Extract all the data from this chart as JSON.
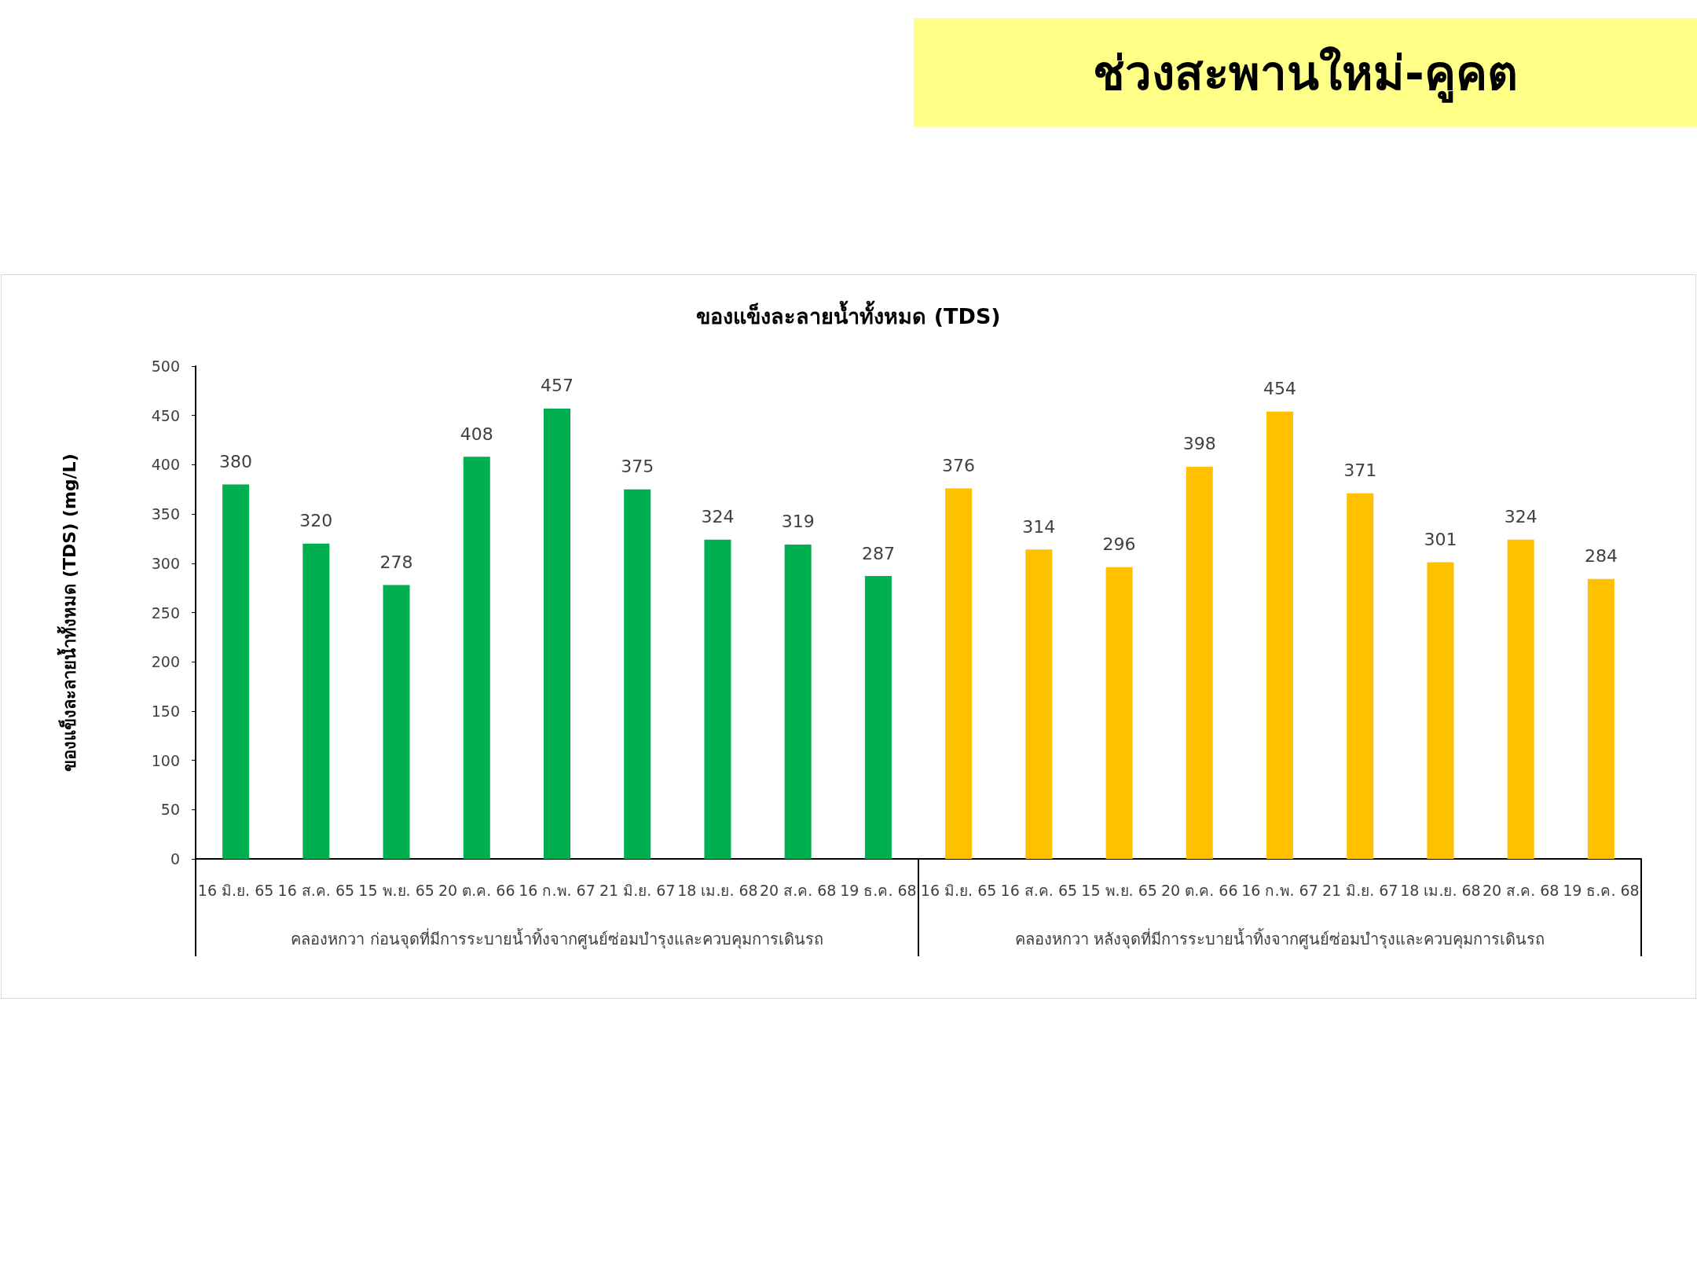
{
  "chart_data": {
    "type": "bar",
    "title": "ช่วงสะพานใหม่-คูคต",
    "subtitle": "ของแข็งละลายน้ำทั้งหมด (TDS)",
    "ylabel": "ของแข็งละลายน้ำทั้งหมด (TDS) (mg/L)",
    "categories": [
      "16 มิ.ย. 65",
      "16 ส.ค. 65",
      "15 พ.ย. 65",
      "20 ต.ค. 66",
      "16 ก.พ. 67",
      "21 มิ.ย. 67",
      "18 เม.ย. 68",
      "20 ส.ค. 68",
      "19 ธ.ค. 68",
      "16 มิ.ย. 65",
      "16 ส.ค. 65",
      "15 พ.ย. 65",
      "20 ต.ค. 66",
      "16 ก.พ. 67",
      "21 มิ.ย. 67",
      "18 เม.ย. 68",
      "20 ส.ค. 68",
      "19 ธ.ค. 68"
    ],
    "values": [
      380,
      320,
      278,
      408,
      457,
      375,
      324,
      319,
      287,
      376,
      314,
      296,
      398,
      454,
      371,
      301,
      324,
      284
    ],
    "colors": [
      "#00b050",
      "#00b050",
      "#00b050",
      "#00b050",
      "#00b050",
      "#00b050",
      "#00b050",
      "#00b050",
      "#00b050",
      "#ffc000",
      "#ffc000",
      "#ffc000",
      "#ffc000",
      "#ffc000",
      "#ffc000",
      "#ffc000",
      "#ffc000",
      "#ffc000"
    ],
    "annotations": [
      "คลองหกวา ก่อนจุดที่มีการระบายน้ำทิ้งจากศูนย์ซ่อมบำรุงและควบคุมการเดินรถ",
      "คลองหกวา หลังจุดที่มีการระบายน้ำทิ้งจากศูนย์ซ่อมบำรุงและควบคุมการเดินรถ"
    ],
    "ylim": [
      0,
      500
    ],
    "yticks": [
      0,
      50,
      100,
      150,
      200,
      250,
      300,
      350,
      400,
      450,
      500
    ],
    "data_labels": true
  }
}
